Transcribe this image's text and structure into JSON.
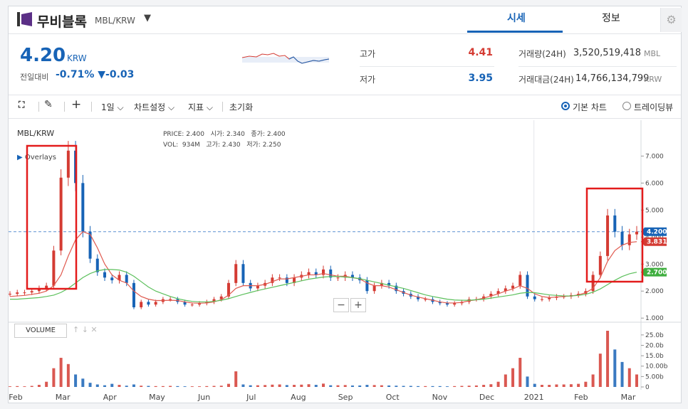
{
  "header": {
    "coin_name": "무비블록",
    "pair": "MBL/KRW",
    "tabs": [
      {
        "label": "시세"
      },
      {
        "label": "정보"
      }
    ]
  },
  "summary": {
    "price": "4.20",
    "price_unit": "KRW",
    "change_label": "전일대비",
    "change_value": "-0.71% ▼-0.03",
    "high_label": "고가",
    "high_value": "4.41",
    "low_label": "저가",
    "low_value": "3.95",
    "volume_label": "거래량(24H)",
    "volume_value": "3,520,519,418",
    "volume_unit": "MBL",
    "amount_label": "거래대금(24H)",
    "amount_value": "14,766,134,799",
    "amount_unit": "KRW"
  },
  "toolbar": {
    "interval": "1일",
    "chart_settings": "차트설정",
    "indicators": "지표",
    "reset": "초기화",
    "basic_chart": "기본 차트",
    "tradingview": "트레이딩뷰"
  },
  "legend": {
    "pair": "MBL/KRW",
    "overlays": "Overlays",
    "price_label": "PRICE:",
    "price": "2.400",
    "open_label": "시가:",
    "open": "2.340",
    "close_label": "종가:",
    "close": "2.400",
    "vol_label": "VOL:",
    "vol": "934M",
    "high_label": "고가:",
    "high": "2.430",
    "low_label": "저가:",
    "low": "2.250",
    "volume_button": "VOLUME"
  },
  "colors": {
    "accent": "#1763b6",
    "up": "#d43b33",
    "down": "#1763b6",
    "ma_short": "#e05a4f",
    "ma_long": "#5cc05c",
    "highlight_box": "#e31b1b"
  },
  "chart_data": {
    "type": "line",
    "price_axis": {
      "ticks": [
        "7.000",
        "6.000",
        "5.000",
        "4.000",
        "3.000",
        "2.000",
        "1.000"
      ],
      "ylim": [
        0.9,
        7.8
      ]
    },
    "volume_axis": {
      "ticks": [
        "25.0b",
        "20.0b",
        "15.0b",
        "10.00b",
        "5.00b",
        "0"
      ],
      "ylim": [
        0,
        27
      ]
    },
    "x_ticks": [
      "Feb",
      "Mar",
      "Apr",
      "May",
      "Jun",
      "Jul",
      "Aug",
      "Sep",
      "Oct",
      "Nov",
      "Dec",
      "2021",
      "Feb",
      "Mar"
    ],
    "series": [
      {
        "name": "price",
        "values": [
          1.9,
          1.95,
          1.95,
          2.0,
          2.1,
          2.2,
          3.5,
          6.2,
          7.2,
          6.0,
          4.2,
          3.2,
          2.7,
          2.5,
          2.4,
          2.6,
          2.3,
          1.4,
          1.6,
          1.5,
          1.6,
          1.7,
          1.7,
          1.6,
          1.5,
          1.5,
          1.55,
          1.6,
          1.7,
          1.8,
          2.3,
          3.0,
          2.3,
          2.1,
          2.2,
          2.3,
          2.5,
          2.5,
          2.3,
          2.5,
          2.6,
          2.7,
          2.6,
          2.8,
          2.5,
          2.5,
          2.6,
          2.5,
          2.4,
          2.0,
          2.2,
          2.3,
          2.2,
          2.0,
          1.9,
          1.8,
          1.7,
          1.7,
          1.6,
          1.55,
          1.5,
          1.55,
          1.6,
          1.7,
          1.7,
          1.8,
          1.9,
          2.0,
          2.1,
          2.2,
          2.6,
          1.8,
          1.7,
          1.7,
          1.75,
          1.8,
          1.8,
          1.85,
          1.9,
          2.0,
          2.6,
          3.3,
          4.8,
          4.2,
          3.7,
          4.1,
          4.2
        ]
      },
      {
        "name": "ma_short",
        "values": [
          1.8,
          1.82,
          1.84,
          1.88,
          1.92,
          2.0,
          2.2,
          2.6,
          3.3,
          3.9,
          4.2,
          4.1,
          3.6,
          3.0,
          2.6,
          2.4,
          2.3,
          2.0,
          1.8,
          1.7,
          1.65,
          1.65,
          1.66,
          1.65,
          1.6,
          1.56,
          1.55,
          1.56,
          1.6,
          1.68,
          1.85,
          2.1,
          2.2,
          2.2,
          2.2,
          2.25,
          2.35,
          2.45,
          2.45,
          2.5,
          2.55,
          2.6,
          2.6,
          2.65,
          2.6,
          2.55,
          2.55,
          2.5,
          2.45,
          2.3,
          2.2,
          2.2,
          2.15,
          2.05,
          1.95,
          1.85,
          1.78,
          1.72,
          1.66,
          1.6,
          1.56,
          1.56,
          1.58,
          1.64,
          1.68,
          1.74,
          1.82,
          1.9,
          2.0,
          2.08,
          2.2,
          2.1,
          1.9,
          1.8,
          1.76,
          1.78,
          1.8,
          1.82,
          1.86,
          1.94,
          2.1,
          2.5,
          3.1,
          3.5,
          3.7,
          3.8,
          3.83
        ]
      },
      {
        "name": "ma_long",
        "values": [
          1.7,
          1.7,
          1.72,
          1.74,
          1.76,
          1.8,
          1.85,
          1.95,
          2.1,
          2.3,
          2.5,
          2.65,
          2.75,
          2.8,
          2.8,
          2.78,
          2.7,
          2.55,
          2.35,
          2.15,
          2.0,
          1.9,
          1.8,
          1.72,
          1.66,
          1.62,
          1.6,
          1.6,
          1.62,
          1.66,
          1.72,
          1.8,
          1.88,
          1.95,
          2.02,
          2.08,
          2.14,
          2.2,
          2.26,
          2.32,
          2.38,
          2.44,
          2.48,
          2.52,
          2.54,
          2.54,
          2.52,
          2.5,
          2.46,
          2.4,
          2.34,
          2.28,
          2.22,
          2.16,
          2.1,
          2.02,
          1.94,
          1.86,
          1.8,
          1.75,
          1.7,
          1.67,
          1.66,
          1.66,
          1.68,
          1.7,
          1.74,
          1.78,
          1.82,
          1.86,
          1.92,
          1.95,
          1.94,
          1.9,
          1.86,
          1.84,
          1.82,
          1.82,
          1.84,
          1.88,
          1.96,
          2.08,
          2.24,
          2.4,
          2.54,
          2.64,
          2.7
        ]
      },
      {
        "name": "volume",
        "values": [
          0.3,
          0.4,
          0.3,
          0.5,
          1.0,
          2.5,
          9.0,
          14.0,
          11.0,
          6.0,
          4.0,
          2.0,
          1.2,
          0.8,
          1.5,
          1.0,
          0.6,
          1.2,
          0.6,
          0.5,
          0.4,
          0.4,
          0.5,
          0.4,
          0.3,
          0.3,
          0.3,
          0.4,
          0.5,
          0.6,
          1.5,
          7.5,
          1.2,
          0.8,
          0.8,
          0.9,
          1.1,
          1.2,
          0.9,
          1.0,
          1.1,
          1.3,
          1.0,
          1.6,
          0.8,
          0.8,
          0.9,
          0.7,
          0.7,
          1.0,
          0.9,
          0.8,
          0.7,
          0.6,
          0.5,
          0.5,
          0.4,
          0.4,
          0.4,
          0.4,
          0.3,
          0.4,
          0.5,
          0.6,
          0.7,
          1.0,
          1.3,
          2.5,
          6.0,
          9.0,
          14.0,
          5.0,
          1.5,
          1.0,
          1.0,
          1.2,
          1.2,
          1.3,
          1.5,
          2.5,
          6.0,
          16.0,
          27.0,
          18.0,
          12.0,
          9.0,
          6.0
        ]
      }
    ],
    "price_markers": [
      {
        "label": "4.200",
        "value": 4.2,
        "color": "#1763b6"
      },
      {
        "label": "3.831",
        "value": 3.831,
        "color": "#d43b33"
      },
      {
        "label": "2.700",
        "value": 2.7,
        "color": "#3fae3f"
      }
    ],
    "zoom_labels": [
      "−",
      "+"
    ]
  }
}
